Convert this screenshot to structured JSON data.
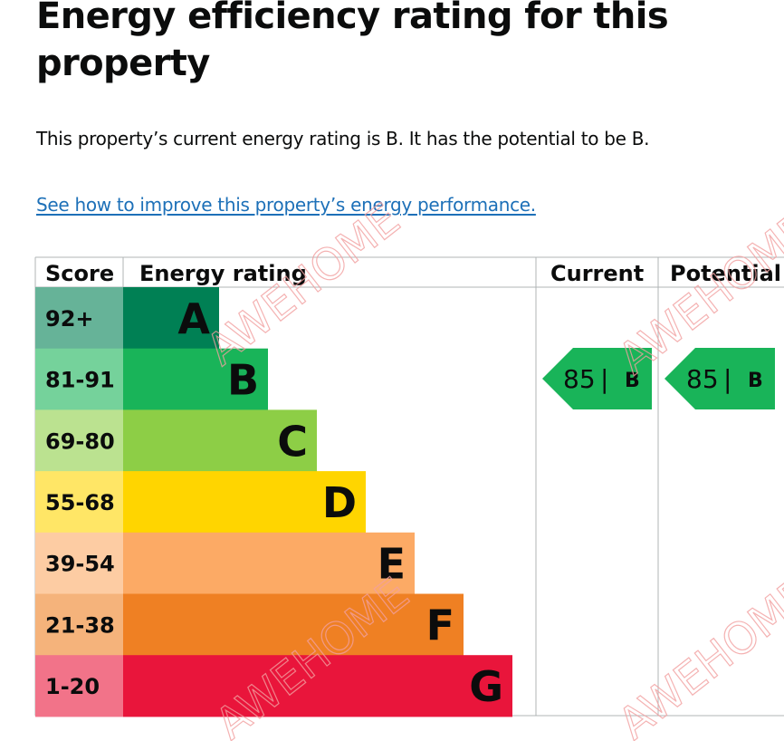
{
  "page": {
    "heading": "Energy efficiency rating for this property",
    "summary": "This property’s current energy rating is B. It has the potential to be B.",
    "improve_link": "See how to improve this property’s energy performance."
  },
  "table": {
    "headers": {
      "score": "Score",
      "energy_rating": "Energy rating",
      "current": "Current",
      "potential": "Potential"
    },
    "bands": [
      {
        "score": "92+",
        "letter": "A",
        "color": "#008054",
        "score_bg": "#66b398"
      },
      {
        "score": "81-91",
        "letter": "B",
        "color": "#19b459",
        "score_bg": "#75d29b"
      },
      {
        "score": "69-80",
        "letter": "C",
        "color": "#8dce46",
        "score_bg": "#bbe290"
      },
      {
        "score": "55-68",
        "letter": "D",
        "color": "#ffd500",
        "score_bg": "#ffe666"
      },
      {
        "score": "39-54",
        "letter": "E",
        "color": "#fcaa65",
        "score_bg": "#fdcca3"
      },
      {
        "score": "21-38",
        "letter": "F",
        "color": "#ef8023",
        "score_bg": "#f5b37b"
      },
      {
        "score": "1-20",
        "letter": "G",
        "color": "#e9153b",
        "score_bg": "#f27389"
      }
    ],
    "current": {
      "score": "85",
      "letter": "B",
      "color": "#19b459"
    },
    "potential": {
      "score": "85",
      "letter": "B",
      "color": "#19b459"
    }
  },
  "watermark": {
    "text": "AWEHOME",
    "color": "#f2a0a0"
  }
}
